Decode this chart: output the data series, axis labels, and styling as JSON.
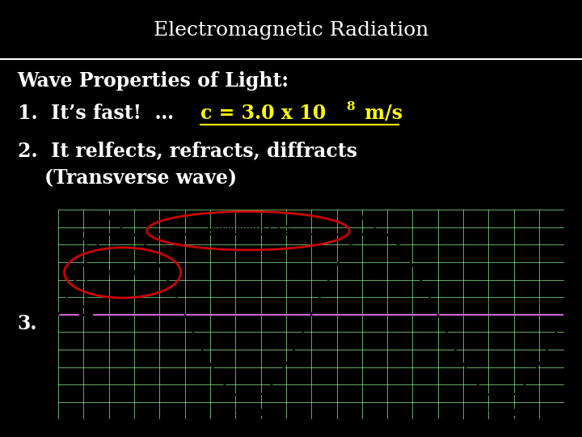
{
  "title": "Electromagnetic Radiation",
  "bg_color": "#000000",
  "title_color": "#ffffff",
  "title_fontsize": 18,
  "line1_white": "Wave Properties of Light:",
  "line2_white": "1.  It’s fast!  …",
  "line2_yellow": "c = 3.0 x 10",
  "line2_super": "8",
  "line2_end": " m/s",
  "line3": "2.  It relfects, refracts, diffracts",
  "line4": "    (Transverse wave)",
  "line5": "3.",
  "wave_bg": "#d4edda",
  "wave_grid_color": "#90ee90",
  "wave_line_color": "#000000",
  "equilibrium_color": "#cc66cc",
  "red_circle_color": "#cc0000"
}
